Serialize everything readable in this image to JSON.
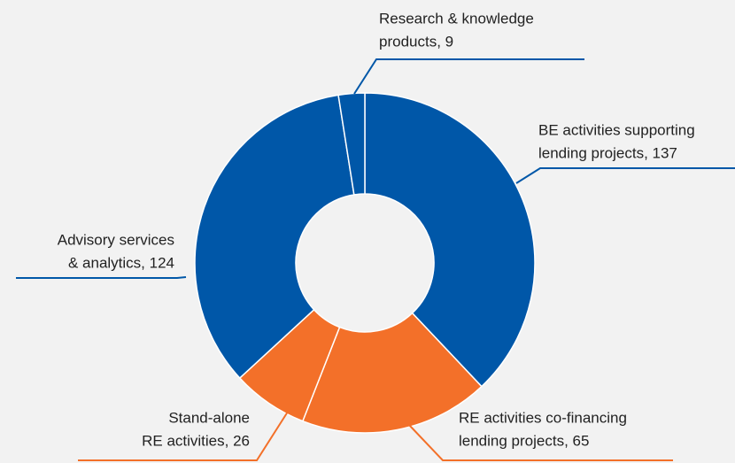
{
  "chart_data": {
    "type": "donut",
    "categories": [
      "BE activities supporting lending projects",
      "RE activities co-financing lending projects",
      "Stand-alone RE activities",
      "Advisory services & analytics",
      "Research & knowledge products"
    ],
    "values": [
      137,
      65,
      26,
      124,
      9
    ],
    "value_labels": [
      [
        "BE activities supporting",
        "lending projects, 137"
      ],
      [
        "RE activities co-financing",
        "lending projects, 65"
      ],
      [
        "Stand-alone",
        "RE activities, 26"
      ],
      [
        "Advisory services",
        "& analytics, 124"
      ],
      [
        "Research & knowledge",
        "products, 9"
      ]
    ],
    "colors": [
      "#0057a8",
      "#f37029",
      "#f37029",
      "#0057a8",
      "#0057a8"
    ]
  }
}
